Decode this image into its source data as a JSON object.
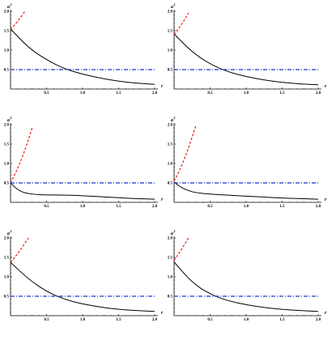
{
  "chart_data": [
    {
      "type": "line",
      "xlabel": "r",
      "ylabel": "a",
      "ylabel_sup": "2",
      "xlim": [
        0,
        2.0
      ],
      "ylim": [
        0,
        2.0
      ],
      "xticks": [
        "0.5",
        "1.0",
        "1.5",
        "2.0"
      ],
      "yticks": [
        "0.5",
        "1.0",
        "1.5",
        "2.0"
      ],
      "series": [
        {
          "style": "solid",
          "color": "#000000",
          "x": [
            0,
            0.25,
            0.5,
            0.75,
            1.0,
            1.25,
            1.5,
            1.75,
            2.0
          ],
          "y": [
            1.55,
            1.06,
            0.75,
            0.52,
            0.38,
            0.28,
            0.2,
            0.15,
            0.12
          ]
        },
        {
          "style": "dashed",
          "color": "#e8211d",
          "x": [
            0,
            0.05,
            0.1,
            0.15,
            0.2
          ],
          "y": [
            1.53,
            1.63,
            1.75,
            1.87,
            2.0
          ]
        },
        {
          "style": "dashdot",
          "color": "#1a33c9",
          "x": [
            0,
            2.0
          ],
          "y": [
            0.5,
            0.5
          ]
        }
      ]
    },
    {
      "type": "line",
      "xlabel": "r",
      "ylabel": "a",
      "ylabel_sup": "2",
      "xlim": [
        0,
        2.0
      ],
      "ylim": [
        0,
        2.0
      ],
      "xticks": [
        "0.5",
        "1.0",
        "1.5",
        "2.0"
      ],
      "yticks": [
        "0.5",
        "1.0",
        "1.5",
        "2.0"
      ],
      "series": [
        {
          "style": "solid",
          "color": "#000000",
          "x": [
            0,
            0.25,
            0.5,
            0.75,
            1.0,
            1.25,
            1.5,
            1.75,
            2.0
          ],
          "y": [
            1.42,
            0.95,
            0.64,
            0.44,
            0.32,
            0.23,
            0.17,
            0.13,
            0.11
          ]
        },
        {
          "style": "dashed",
          "color": "#e8211d",
          "x": [
            0,
            0.05,
            0.1,
            0.15,
            0.2
          ],
          "y": [
            1.4,
            1.52,
            1.65,
            1.8,
            1.96
          ]
        },
        {
          "style": "dashdot",
          "color": "#1a33c9",
          "x": [
            0,
            2.0
          ],
          "y": [
            0.5,
            0.5
          ]
        }
      ]
    },
    {
      "type": "line",
      "xlabel": "r",
      "ylabel": "a",
      "ylabel_sup": "2",
      "xlim": [
        0,
        2.0
      ],
      "ylim": [
        0,
        2.0
      ],
      "xticks": [
        "0.5",
        "1.0",
        "1.5",
        "2.0"
      ],
      "yticks": [
        "0.5",
        "1.0",
        "1.5",
        "2.0"
      ],
      "series": [
        {
          "style": "solid",
          "color": "#000000",
          "x": [
            0,
            0.1,
            0.2,
            0.35,
            0.5,
            0.7,
            0.9,
            1.1,
            1.3,
            1.5,
            1.7,
            2.0
          ],
          "y": [
            0.5,
            0.32,
            0.24,
            0.2,
            0.19,
            0.19,
            0.18,
            0.16,
            0.14,
            0.12,
            0.1,
            0.08
          ]
        },
        {
          "style": "dashed",
          "color": "#e8211d",
          "x": [
            0,
            0.05,
            0.1,
            0.15,
            0.2,
            0.25,
            0.3
          ],
          "y": [
            0.5,
            0.68,
            0.88,
            1.1,
            1.35,
            1.62,
            1.92
          ]
        },
        {
          "style": "dashdot",
          "color": "#1a33c9",
          "x": [
            0,
            2.0
          ],
          "y": [
            0.5,
            0.5
          ]
        }
      ]
    },
    {
      "type": "line",
      "xlabel": "r",
      "ylabel": "a",
      "ylabel_sup": "2",
      "xlim": [
        0,
        2.0
      ],
      "ylim": [
        0,
        2.0
      ],
      "xticks": [
        "0.5",
        "1.0",
        "1.5",
        "2.0"
      ],
      "yticks": [
        "0.5",
        "1.0",
        "1.5",
        "2.0"
      ],
      "series": [
        {
          "style": "solid",
          "color": "#000000",
          "x": [
            0,
            0.1,
            0.2,
            0.3,
            0.5,
            0.7,
            0.9,
            1.1,
            1.3,
            1.5,
            1.7,
            2.0
          ],
          "y": [
            0.52,
            0.38,
            0.3,
            0.25,
            0.21,
            0.19,
            0.17,
            0.15,
            0.13,
            0.11,
            0.1,
            0.08
          ]
        },
        {
          "style": "dashed",
          "color": "#e8211d",
          "x": [
            0,
            0.05,
            0.1,
            0.15,
            0.2,
            0.25,
            0.3
          ],
          "y": [
            0.55,
            0.72,
            0.92,
            1.15,
            1.4,
            1.68,
            1.96
          ]
        },
        {
          "style": "dashdot",
          "color": "#1a33c9",
          "x": [
            0,
            2.0
          ],
          "y": [
            0.5,
            0.5
          ]
        }
      ]
    },
    {
      "type": "line",
      "xlabel": "r",
      "ylabel": "a",
      "ylabel_sup": "2",
      "xlim": [
        0,
        2.0
      ],
      "ylim": [
        0,
        2.0
      ],
      "xticks": [
        "0.5",
        "1.0",
        "1.5",
        "2.0"
      ],
      "yticks": [
        "0.5",
        "1.0",
        "1.5",
        "2.0"
      ],
      "series": [
        {
          "style": "solid",
          "color": "#000000",
          "x": [
            0,
            0.25,
            0.5,
            0.75,
            1.0,
            1.25,
            1.5,
            1.75,
            2.0
          ],
          "y": [
            1.37,
            0.94,
            0.62,
            0.42,
            0.3,
            0.22,
            0.16,
            0.13,
            0.11
          ]
        },
        {
          "style": "dashed",
          "color": "#e8211d",
          "x": [
            0,
            0.05,
            0.1,
            0.15,
            0.2,
            0.25
          ],
          "y": [
            1.37,
            1.48,
            1.6,
            1.73,
            1.87,
            2.0
          ]
        },
        {
          "style": "dashdot",
          "color": "#1a33c9",
          "x": [
            0,
            2.0
          ],
          "y": [
            0.5,
            0.5
          ]
        }
      ]
    },
    {
      "type": "line",
      "xlabel": "r",
      "ylabel": "a",
      "ylabel_sup": "2",
      "xlim": [
        0,
        2.0
      ],
      "ylim": [
        0,
        2.0
      ],
      "xticks": [
        "0.5",
        "1.0",
        "1.5",
        "2.0"
      ],
      "yticks": [
        "0.5",
        "1.0",
        "1.5",
        "2.0"
      ],
      "series": [
        {
          "style": "solid",
          "color": "#000000",
          "x": [
            0,
            0.25,
            0.5,
            0.75,
            1.0,
            1.25,
            1.5,
            1.75,
            2.0
          ],
          "y": [
            1.38,
            0.85,
            0.55,
            0.38,
            0.28,
            0.21,
            0.16,
            0.13,
            0.11
          ]
        },
        {
          "style": "dashed",
          "color": "#e8211d",
          "x": [
            0,
            0.05,
            0.1,
            0.15,
            0.2
          ],
          "y": [
            1.42,
            1.56,
            1.7,
            1.85,
            2.0
          ]
        },
        {
          "style": "dashdot",
          "color": "#1a33c9",
          "x": [
            0,
            2.0
          ],
          "y": [
            0.5,
            0.5
          ]
        }
      ]
    }
  ]
}
